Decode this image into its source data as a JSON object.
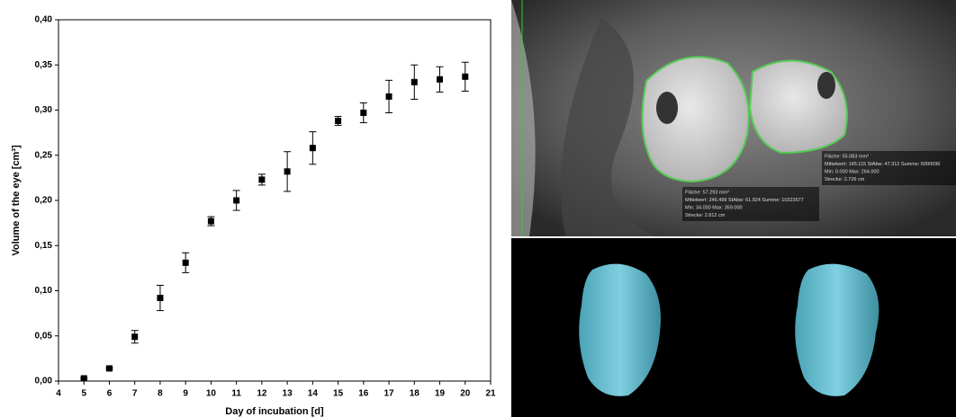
{
  "chart_data": {
    "type": "scatter",
    "x_label": "Day of incubation [d]",
    "y_label": "Volume of the eye [cm³]",
    "xlim": [
      4,
      21
    ],
    "xticks": [
      4,
      5,
      6,
      7,
      8,
      9,
      10,
      11,
      12,
      13,
      14,
      15,
      16,
      17,
      18,
      19,
      20,
      21
    ],
    "ylim": [
      0,
      0.4
    ],
    "yticks": [
      {
        "value": 0,
        "label": "0,00"
      },
      {
        "value": 0.05,
        "label": "0,05"
      },
      {
        "value": 0.1,
        "label": "0,10"
      },
      {
        "value": 0.15,
        "label": "0,15"
      },
      {
        "value": 0.2,
        "label": "0,20"
      },
      {
        "value": 0.25,
        "label": "0,25"
      },
      {
        "value": 0.3,
        "label": "0,30"
      },
      {
        "value": 0.35,
        "label": "0,35"
      },
      {
        "value": 0.4,
        "label": "0,40"
      }
    ],
    "series": [
      {
        "color": "#000000",
        "x": [
          5,
          6,
          7,
          8,
          9,
          10,
          11,
          12,
          13,
          14,
          15,
          16,
          17,
          18,
          19,
          20
        ],
        "values": [
          0.003,
          0.014,
          0.049,
          0.092,
          0.131,
          0.177,
          0.2,
          0.223,
          0.232,
          0.258,
          0.288,
          0.297,
          0.315,
          0.331,
          0.334,
          0.337
        ],
        "errors": [
          0.001,
          0.001,
          0.007,
          0.014,
          0.011,
          0.005,
          0.011,
          0.006,
          0.022,
          0.018,
          0.005,
          0.011,
          0.018,
          0.019,
          0.014,
          0.016
        ]
      }
    ]
  },
  "image_annotations": {
    "right_eye": [
      "Fläche: 55.083 mm²",
      "Mittelwert: 145.115   StAbw: 47.312   Summe: 6000096",
      "Min: 0.000   Max: 264.000",
      "Strecke: 2.726 cm"
    ],
    "left_eye": [
      "Fläche: 57.293 mm²",
      "Mittelwert: 246.499   StAbw: 61.924   Summe: 10323577",
      "Min: 34.000   Max: 359.000",
      "Strecke: 2.812 cm"
    ]
  }
}
